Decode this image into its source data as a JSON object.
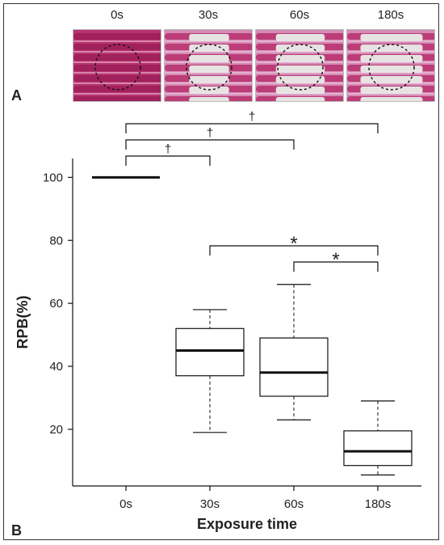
{
  "panel_a": {
    "label": "A",
    "photo_labels": [
      "0s",
      "30s",
      "60s",
      "180s"
    ],
    "photo_pink_fraction": [
      0.95,
      0.55,
      0.45,
      0.3
    ]
  },
  "panel_b": {
    "label": "B"
  },
  "colors": {
    "pink": "#b8336f",
    "light_pink": "#d58ab5",
    "white_metal": "#e8ece8",
    "line": "#111111"
  },
  "chart_data": {
    "type": "box",
    "categories": [
      "0s",
      "30s",
      "60s",
      "180s"
    ],
    "xlabel": "Exposure time",
    "ylabel": "RPB(%)",
    "yticks": [
      20,
      40,
      60,
      80,
      100
    ],
    "ylim": [
      2,
      106
    ],
    "boxes": [
      {
        "category": "0s",
        "min": 100,
        "q1": 100,
        "median": 100,
        "q3": 100,
        "max": 100
      },
      {
        "category": "30s",
        "min": 19,
        "q1": 37,
        "median": 45,
        "q3": 52,
        "max": 58
      },
      {
        "category": "60s",
        "min": 23,
        "q1": 30.5,
        "median": 38,
        "q3": 49,
        "max": 66
      },
      {
        "category": "180s",
        "min": 5.5,
        "q1": 8.5,
        "median": 13,
        "q3": 19.5,
        "max": 29
      }
    ],
    "significance_above": [
      {
        "from": "0s",
        "to": "30s",
        "mark": "†"
      },
      {
        "from": "0s",
        "to": "60s",
        "mark": "†"
      },
      {
        "from": "0s",
        "to": "180s",
        "mark": "†"
      }
    ],
    "significance_inside": [
      {
        "from": "30s",
        "to": "180s",
        "mark": "*"
      },
      {
        "from": "60s",
        "to": "180s",
        "mark": "*"
      }
    ]
  }
}
